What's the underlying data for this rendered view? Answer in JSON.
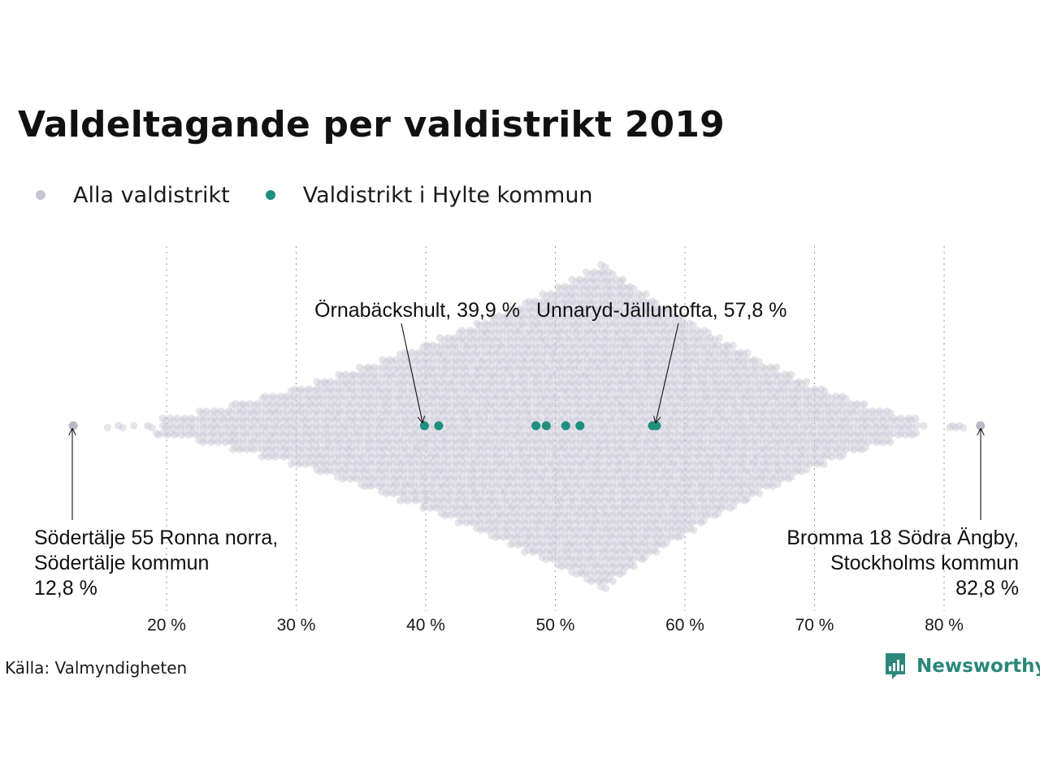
{
  "title": "Valdeltagande per valdistrikt 2019",
  "legend": {
    "all": {
      "label": "Alla valdistrikt",
      "color": "#c6c4d2"
    },
    "hylte": {
      "label": "Valdistrikt i Hylte kommun",
      "color": "#1f8f80"
    }
  },
  "source": "Källa: Valmyndigheten",
  "brand": {
    "name": "Newsworthy",
    "color": "#2a8779"
  },
  "chart_data": {
    "type": "scatter",
    "subtype": "beeswarm",
    "x_axis": {
      "label": "",
      "range": [
        11,
        84
      ],
      "ticks": [
        20,
        30,
        40,
        50,
        60,
        70,
        80
      ],
      "tick_labels": [
        "20 %",
        "30 %",
        "40 %",
        "50 %",
        "60 %",
        "70 %",
        "80 %"
      ],
      "grid": "vertical dotted"
    },
    "series": [
      {
        "name": "Alla valdistrikt",
        "color": "#c6c4d2",
        "distribution": {
          "min": 12.8,
          "mode": 53.7,
          "max": 82.8,
          "shape": "diamond, widest near 53.7 %"
        }
      },
      {
        "name": "Valdistrikt i Hylte kommun",
        "color": "#1f8f80",
        "values": [
          39.9,
          41.0,
          48.5,
          49.3,
          50.8,
          51.9,
          57.5,
          57.8
        ]
      }
    ],
    "highlights": [
      {
        "value": 12.8,
        "color": "#b9b7c6"
      },
      {
        "value": 82.8,
        "color": "#b9b7c6"
      }
    ],
    "annotations": [
      {
        "lines": [
          "Örnabäckshult, 39,9 %"
        ],
        "x": 39.9,
        "anchor": "end"
      },
      {
        "lines": [
          "Unnaryd-Jälluntofta, 57,8 %"
        ],
        "x": 57.8,
        "anchor": "start"
      },
      {
        "lines": [
          "Södertälje 55 Ronna norra,",
          "Södertälje kommun",
          "12,8 %"
        ],
        "x": 12.8,
        "anchor": "start"
      },
      {
        "lines": [
          "Bromma 18 Södra Ängby,",
          "Stockholms kommun",
          "82,8 %"
        ],
        "x": 82.8,
        "anchor": "end"
      }
    ]
  }
}
